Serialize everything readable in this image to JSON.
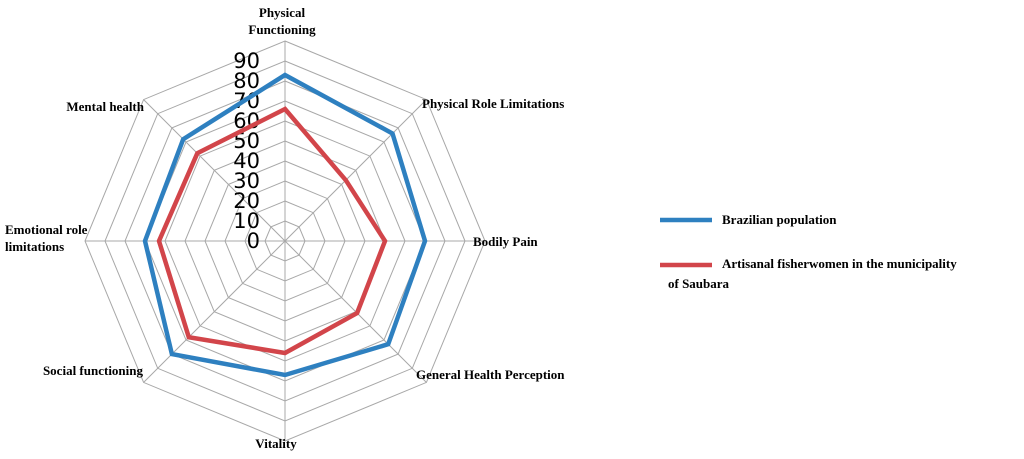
{
  "chart_data": {
    "type": "radar",
    "title": "",
    "axes": [
      "Physical Functioning",
      "Physical Role Limitations",
      "Bodily Pain",
      "General Health Perception",
      "Vitality",
      "Social functioning",
      "Emotional role limitations",
      "Mental health"
    ],
    "axis_label_lines": [
      [
        "Physical",
        "Functioning"
      ],
      [
        "Physical Role Limitations"
      ],
      [
        "Bodily Pain"
      ],
      [
        "General Health Perception"
      ],
      [
        "Vitality"
      ],
      [
        "Social functioning"
      ],
      [
        "Emotional role",
        "limitations"
      ],
      [
        "Mental health"
      ]
    ],
    "rlim": [
      0,
      90
    ],
    "ticks": [
      0,
      10,
      20,
      30,
      40,
      50,
      60,
      70,
      80,
      90
    ],
    "series": [
      {
        "name": "Brazilian population",
        "color": "#2E80C0",
        "values": [
          83,
          76,
          70,
          73,
          67,
          80,
          70,
          72
        ]
      },
      {
        "name": "Artisanal fisherwomen in the municipality of Saubara",
        "legend_lines": [
          "Artisanal fisherwomen in the municipality",
          "of Saubara"
        ],
        "color": "#D2454A",
        "values": [
          66,
          43,
          50,
          51,
          56,
          68,
          63,
          62
        ]
      }
    ],
    "legend_position": "right"
  }
}
